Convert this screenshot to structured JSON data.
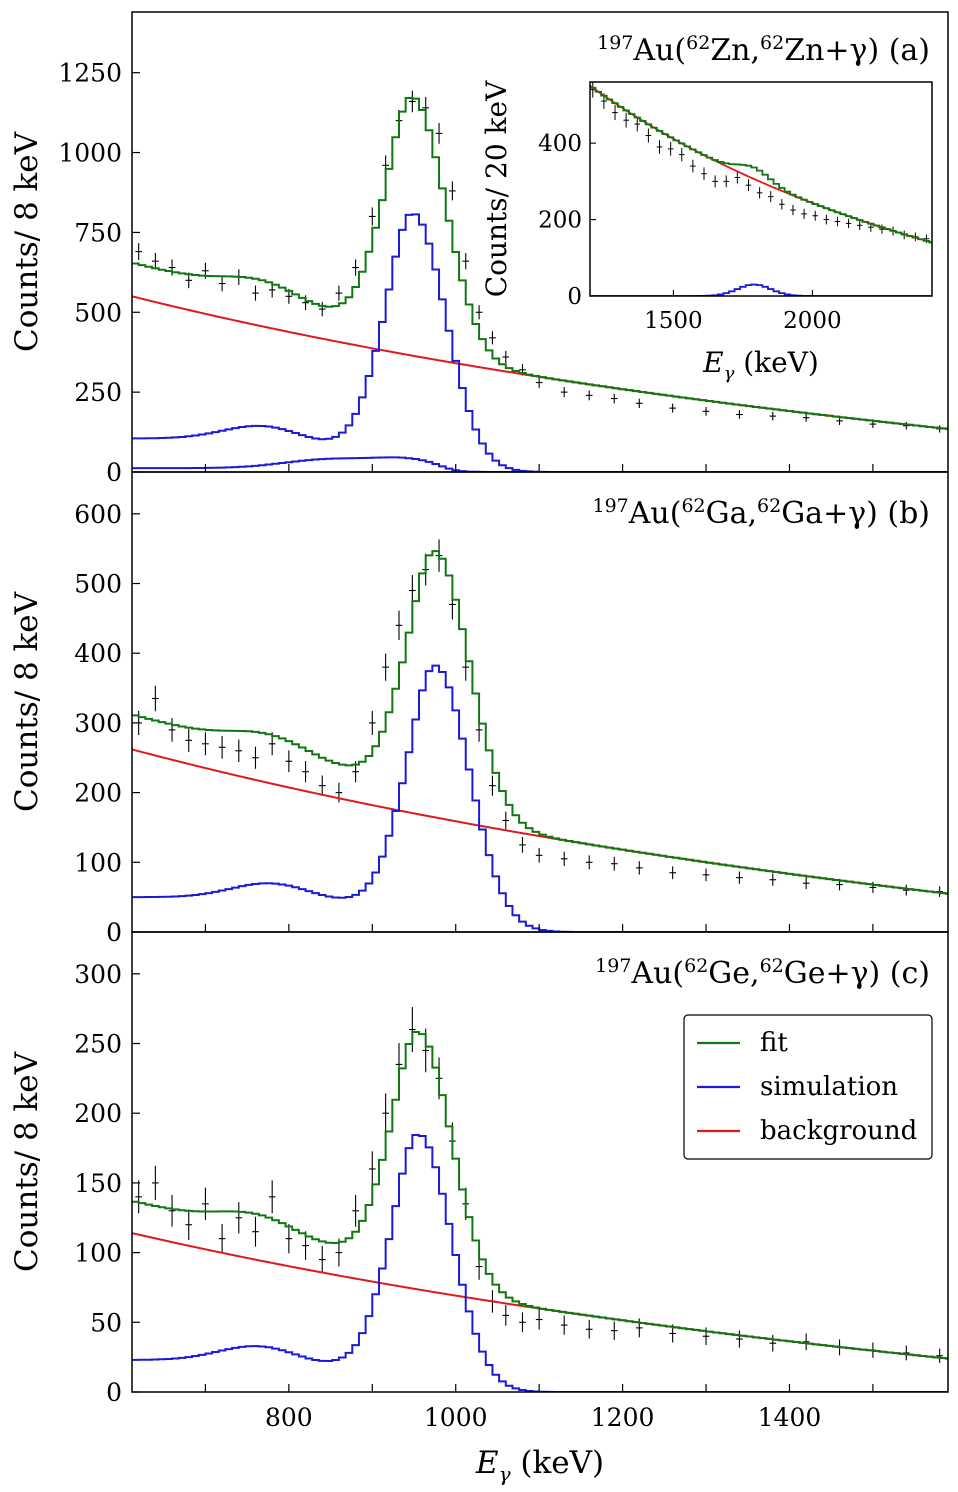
{
  "figure": {
    "x_axis_label": "E_γ (keV)",
    "y_axis_label": "Counts/ 8 keV",
    "colors": {
      "fit": "#117711",
      "simulation": "#1a1ad9",
      "background": "#e01a1a",
      "data": "#000000"
    },
    "legend": {
      "position": "right, bottom panel",
      "entries": [
        "fit",
        "simulation",
        "background"
      ]
    }
  },
  "chart_data": [
    {
      "id": "a",
      "type": "line",
      "title": "197Au(62Zn,62Zn+γ) (a)",
      "title_parts": {
        "a1": "197",
        "el1": "Au(",
        "a2": "62",
        "el2": "Zn,",
        "a3": "62",
        "el3": "Zn+γ) (a)"
      },
      "xlabel": "",
      "ylabel": "Counts/ 8 keV",
      "xlim": [
        612,
        1590
      ],
      "ylim": [
        0,
        1440
      ],
      "xticks": [],
      "yticks": [
        0,
        250,
        500,
        750,
        1000,
        1250
      ],
      "bin_width": 8,
      "background": {
        "start": 550,
        "end": 135,
        "decay": 1.25
      },
      "sim_shape": {
        "peak_center": 948,
        "peak_height": 810,
        "peak_sigma": 32,
        "peak_right_tail": 1.25,
        "compton_level": 105,
        "compton_bump": 40,
        "compton_center": 765,
        "valley_center": 840,
        "valley_depth": 15,
        "second_peak_center": 850,
        "second_peak_height": 28,
        "second_peak_sigma": 55,
        "second_baseline": 12
      },
      "fit_scale": 1.0,
      "data_points": {
        "x": [
          620,
          640,
          660,
          680,
          700,
          720,
          740,
          760,
          780,
          800,
          820,
          840,
          860,
          880,
          900,
          916,
          932,
          948,
          964,
          980,
          996,
          1012,
          1028,
          1044,
          1060,
          1080,
          1100,
          1130,
          1160,
          1190,
          1220,
          1260,
          1300,
          1340,
          1380,
          1420,
          1460,
          1500,
          1540,
          1580
        ],
        "y": [
          690,
          660,
          640,
          600,
          630,
          590,
          610,
          560,
          570,
          550,
          530,
          510,
          560,
          640,
          800,
          960,
          1100,
          1160,
          1140,
          1060,
          880,
          660,
          500,
          420,
          360,
          320,
          280,
          250,
          240,
          230,
          215,
          200,
          190,
          180,
          175,
          170,
          160,
          150,
          145,
          135
        ]
      },
      "inset": {
        "xlabel": "E_γ (keV)",
        "ylabel": "Counts/ 20 keV",
        "xlim": [
          1200,
          2430
        ],
        "ylim": [
          0,
          560
        ],
        "xticks": [
          1500,
          2000
        ],
        "yticks": [
          0,
          200,
          400
        ],
        "bin_width": 20,
        "background": {
          "start": 550,
          "end": 140,
          "decay": 1.3
        },
        "peak": {
          "center": 1790,
          "height": 30,
          "sigma": 60
        },
        "data_points": {
          "x": [
            1210,
            1250,
            1290,
            1330,
            1370,
            1410,
            1450,
            1490,
            1530,
            1570,
            1610,
            1650,
            1690,
            1730,
            1770,
            1810,
            1850,
            1890,
            1930,
            1970,
            2010,
            2050,
            2090,
            2130,
            2170,
            2210,
            2250,
            2290,
            2330,
            2370,
            2410
          ],
          "y": [
            540,
            510,
            480,
            460,
            450,
            420,
            390,
            385,
            370,
            340,
            320,
            300,
            300,
            310,
            290,
            270,
            260,
            240,
            225,
            215,
            210,
            200,
            195,
            190,
            185,
            180,
            175,
            170,
            160,
            155,
            150
          ]
        }
      }
    },
    {
      "id": "b",
      "type": "line",
      "title": "197Au(62Ga,62Ga+γ) (b)",
      "title_parts": {
        "a1": "197",
        "el1": "Au(",
        "a2": "62",
        "el2": "Ga,",
        "a3": "62",
        "el3": "Ga+γ) (b)"
      },
      "xlabel": "",
      "ylabel": "Counts/ 8 keV",
      "xlim": [
        612,
        1590
      ],
      "ylim": [
        0,
        660
      ],
      "xticks": [],
      "yticks": [
        0,
        100,
        200,
        300,
        400,
        500,
        600
      ],
      "bin_width": 8,
      "background": {
        "start": 262,
        "end": 55,
        "decay": 1.2
      },
      "sim_shape": {
        "peak_center": 975,
        "peak_height": 382,
        "peak_sigma": 33,
        "peak_right_tail": 1.25,
        "compton_level": 50,
        "compton_bump": 20,
        "compton_center": 775,
        "valley_center": 860,
        "valley_depth": 5,
        "second_peak_center": 0,
        "second_peak_height": 0,
        "second_peak_sigma": 50,
        "second_baseline": 0
      },
      "fit_scale": 1.0,
      "data_points": {
        "x": [
          620,
          640,
          660,
          680,
          700,
          720,
          740,
          760,
          780,
          800,
          820,
          840,
          860,
          880,
          900,
          916,
          932,
          948,
          964,
          980,
          996,
          1012,
          1028,
          1044,
          1060,
          1080,
          1100,
          1130,
          1160,
          1190,
          1220,
          1260,
          1300,
          1340,
          1380,
          1420,
          1460,
          1500,
          1540,
          1580
        ],
        "y": [
          300,
          335,
          290,
          275,
          270,
          265,
          260,
          250,
          270,
          245,
          230,
          210,
          200,
          230,
          300,
          380,
          440,
          490,
          520,
          540,
          470,
          380,
          290,
          210,
          160,
          125,
          110,
          105,
          100,
          98,
          92,
          85,
          82,
          78,
          75,
          70,
          68,
          64,
          60,
          58
        ]
      }
    },
    {
      "id": "c",
      "type": "line",
      "title": "197Au(62Ge,62Ge+γ) (c)",
      "title_parts": {
        "a1": "197",
        "el1": "Au(",
        "a2": "62",
        "el2": "Ge,",
        "a3": "62",
        "el3": "Ge+γ) (c)"
      },
      "xlabel": "E_γ (keV)",
      "ylabel": "Counts/ 8 keV",
      "xlim": [
        612,
        1590
      ],
      "ylim": [
        0,
        330
      ],
      "xticks": [
        800,
        1000,
        1200,
        1400
      ],
      "yticks": [
        0,
        50,
        100,
        150,
        200,
        250,
        300
      ],
      "bin_width": 8,
      "background": {
        "start": 114,
        "end": 24,
        "decay": 1.2
      },
      "sim_shape": {
        "peak_center": 955,
        "peak_height": 185,
        "peak_sigma": 32,
        "peak_right_tail": 1.25,
        "compton_level": 23,
        "compton_bump": 10,
        "compton_center": 760,
        "valley_center": 840,
        "valley_depth": 3,
        "second_peak_center": 0,
        "second_peak_height": 0,
        "second_peak_sigma": 50,
        "second_baseline": 0
      },
      "fit_scale": 1.0,
      "data_points": {
        "x": [
          620,
          640,
          660,
          680,
          700,
          720,
          740,
          760,
          780,
          800,
          820,
          840,
          860,
          880,
          900,
          916,
          932,
          948,
          964,
          980,
          996,
          1012,
          1028,
          1044,
          1060,
          1080,
          1100,
          1130,
          1160,
          1190,
          1220,
          1260,
          1300,
          1340,
          1380,
          1420,
          1460,
          1500,
          1540,
          1580
        ],
        "y": [
          140,
          150,
          130,
          120,
          135,
          110,
          125,
          115,
          140,
          110,
          105,
          95,
          100,
          130,
          160,
          200,
          235,
          260,
          245,
          225,
          180,
          135,
          90,
          65,
          55,
          50,
          52,
          48,
          45,
          44,
          46,
          42,
          40,
          38,
          35,
          36,
          32,
          30,
          28,
          26
        ]
      }
    }
  ]
}
